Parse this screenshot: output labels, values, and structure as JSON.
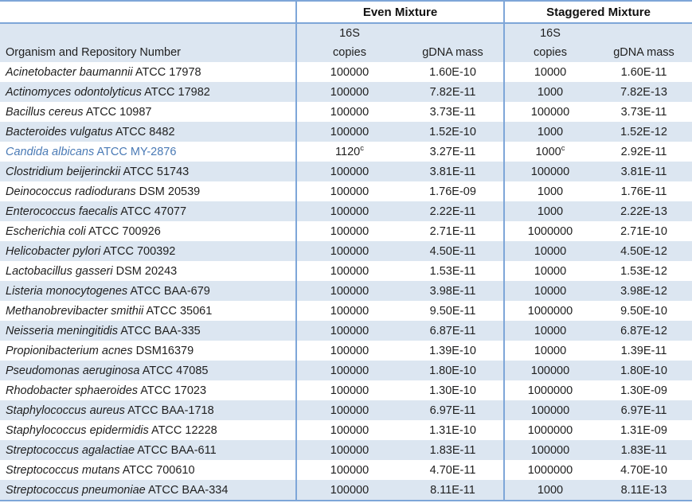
{
  "colors": {
    "border_blue": "#7ea6d8",
    "stripe_blue": "#dce6f1",
    "highlight_row_text": "#4a7ab5",
    "text": "#1f1f1f"
  },
  "table": {
    "groups": {
      "even": "Even Mixture",
      "staggered": "Staggered Mixture"
    },
    "subheaders": {
      "s16": "16S",
      "copies": "copies",
      "gdna": "gDNA mass",
      "organism": "Organism and Repository Number"
    },
    "rows": [
      {
        "species": "Acinetobacter baumannii",
        "repo": "ATCC 17978",
        "even_copies": "100000",
        "even_copies_sup": "",
        "even_gdna": "1.60E-10",
        "stag_copies": "10000",
        "stag_copies_sup": "",
        "stag_gdna": "1.60E-11",
        "highlight": false
      },
      {
        "species": "Actinomyces odontolyticus",
        "repo": "ATCC 17982",
        "even_copies": "100000",
        "even_copies_sup": "",
        "even_gdna": "7.82E-11",
        "stag_copies": "1000",
        "stag_copies_sup": "",
        "stag_gdna": "7.82E-13",
        "highlight": false
      },
      {
        "species": "Bacillus cereus",
        "repo": "ATCC 10987",
        "even_copies": "100000",
        "even_copies_sup": "",
        "even_gdna": "3.73E-11",
        "stag_copies": "100000",
        "stag_copies_sup": "",
        "stag_gdna": "3.73E-11",
        "highlight": false
      },
      {
        "species": "Bacteroides vulgatus",
        "repo": "ATCC 8482",
        "even_copies": "100000",
        "even_copies_sup": "",
        "even_gdna": "1.52E-10",
        "stag_copies": "1000",
        "stag_copies_sup": "",
        "stag_gdna": "1.52E-12",
        "highlight": false
      },
      {
        "species": "Candida albicans",
        "repo": "ATCC MY-2876",
        "even_copies": "1120",
        "even_copies_sup": "c",
        "even_gdna": "3.27E-11",
        "stag_copies": "1000",
        "stag_copies_sup": "c",
        "stag_gdna": "2.92E-11",
        "highlight": true
      },
      {
        "species": "Clostridium beijerinckii",
        "repo": "ATCC 51743",
        "even_copies": "100000",
        "even_copies_sup": "",
        "even_gdna": "3.81E-11",
        "stag_copies": "100000",
        "stag_copies_sup": "",
        "stag_gdna": "3.81E-11",
        "highlight": false
      },
      {
        "species": "Deinococcus radiodurans",
        "repo": "DSM 20539",
        "even_copies": "100000",
        "even_copies_sup": "",
        "even_gdna": "1.76E-09",
        "stag_copies": "1000",
        "stag_copies_sup": "",
        "stag_gdna": "1.76E-11",
        "highlight": false
      },
      {
        "species": "Enterococcus faecalis",
        "repo": "ATCC 47077",
        "even_copies": "100000",
        "even_copies_sup": "",
        "even_gdna": "2.22E-11",
        "stag_copies": "1000",
        "stag_copies_sup": "",
        "stag_gdna": "2.22E-13",
        "highlight": false
      },
      {
        "species": "Escherichia coli",
        "repo": "ATCC 700926",
        "even_copies": "100000",
        "even_copies_sup": "",
        "even_gdna": "2.71E-11",
        "stag_copies": "1000000",
        "stag_copies_sup": "",
        "stag_gdna": "2.71E-10",
        "highlight": false
      },
      {
        "species": "Helicobacter pylori",
        "repo": "ATCC 700392",
        "even_copies": "100000",
        "even_copies_sup": "",
        "even_gdna": "4.50E-11",
        "stag_copies": "10000",
        "stag_copies_sup": "",
        "stag_gdna": "4.50E-12",
        "highlight": false
      },
      {
        "species": "Lactobacillus gasseri",
        "repo": "DSM 20243",
        "even_copies": "100000",
        "even_copies_sup": "",
        "even_gdna": "1.53E-11",
        "stag_copies": "10000",
        "stag_copies_sup": "",
        "stag_gdna": "1.53E-12",
        "highlight": false
      },
      {
        "species": "Listeria monocytogenes",
        "repo": "ATCC BAA-679",
        "even_copies": "100000",
        "even_copies_sup": "",
        "even_gdna": "3.98E-11",
        "stag_copies": "10000",
        "stag_copies_sup": "",
        "stag_gdna": "3.98E-12",
        "highlight": false
      },
      {
        "species": "Methanobrevibacter smithii",
        "repo": "ATCC 35061",
        "even_copies": "100000",
        "even_copies_sup": "",
        "even_gdna": "9.50E-11",
        "stag_copies": "1000000",
        "stag_copies_sup": "",
        "stag_gdna": "9.50E-10",
        "highlight": false
      },
      {
        "species": "Neisseria meningitidis",
        "repo": "ATCC BAA-335",
        "even_copies": "100000",
        "even_copies_sup": "",
        "even_gdna": "6.87E-11",
        "stag_copies": "10000",
        "stag_copies_sup": "",
        "stag_gdna": "6.87E-12",
        "highlight": false
      },
      {
        "species": "Propionibacterium acnes",
        "repo": "DSM16379",
        "even_copies": "100000",
        "even_copies_sup": "",
        "even_gdna": "1.39E-10",
        "stag_copies": "10000",
        "stag_copies_sup": "",
        "stag_gdna": "1.39E-11",
        "highlight": false
      },
      {
        "species": "Pseudomonas aeruginosa",
        "repo": "ATCC 47085",
        "even_copies": "100000",
        "even_copies_sup": "",
        "even_gdna": "1.80E-10",
        "stag_copies": "100000",
        "stag_copies_sup": "",
        "stag_gdna": "1.80E-10",
        "highlight": false
      },
      {
        "species": "Rhodobacter sphaeroides",
        "repo": "ATCC 17023",
        "even_copies": "100000",
        "even_copies_sup": "",
        "even_gdna": "1.30E-10",
        "stag_copies": "1000000",
        "stag_copies_sup": "",
        "stag_gdna": "1.30E-09",
        "highlight": false
      },
      {
        "species": "Staphylococcus aureus",
        "repo": "ATCC BAA-1718",
        "even_copies": "100000",
        "even_copies_sup": "",
        "even_gdna": "6.97E-11",
        "stag_copies": "100000",
        "stag_copies_sup": "",
        "stag_gdna": "6.97E-11",
        "highlight": false
      },
      {
        "species": "Staphylococcus epidermidis",
        "repo": "ATCC 12228",
        "even_copies": "100000",
        "even_copies_sup": "",
        "even_gdna": "1.31E-10",
        "stag_copies": "1000000",
        "stag_copies_sup": "",
        "stag_gdna": "1.31E-09",
        "highlight": false
      },
      {
        "species": "Streptococcus agalactiae",
        "repo": "ATCC BAA-611",
        "even_copies": "100000",
        "even_copies_sup": "",
        "even_gdna": "1.83E-11",
        "stag_copies": "100000",
        "stag_copies_sup": "",
        "stag_gdna": "1.83E-11",
        "highlight": false
      },
      {
        "species": "Streptococcus mutans",
        "repo": "ATCC 700610",
        "even_copies": "100000",
        "even_copies_sup": "",
        "even_gdna": "4.70E-11",
        "stag_copies": "1000000",
        "stag_copies_sup": "",
        "stag_gdna": "4.70E-10",
        "highlight": false
      },
      {
        "species": "Streptococcus pneumoniae",
        "repo": "ATCC BAA-334",
        "even_copies": "100000",
        "even_copies_sup": "",
        "even_gdna": "8.11E-11",
        "stag_copies": "1000",
        "stag_copies_sup": "",
        "stag_gdna": "8.11E-13",
        "highlight": false
      }
    ]
  }
}
